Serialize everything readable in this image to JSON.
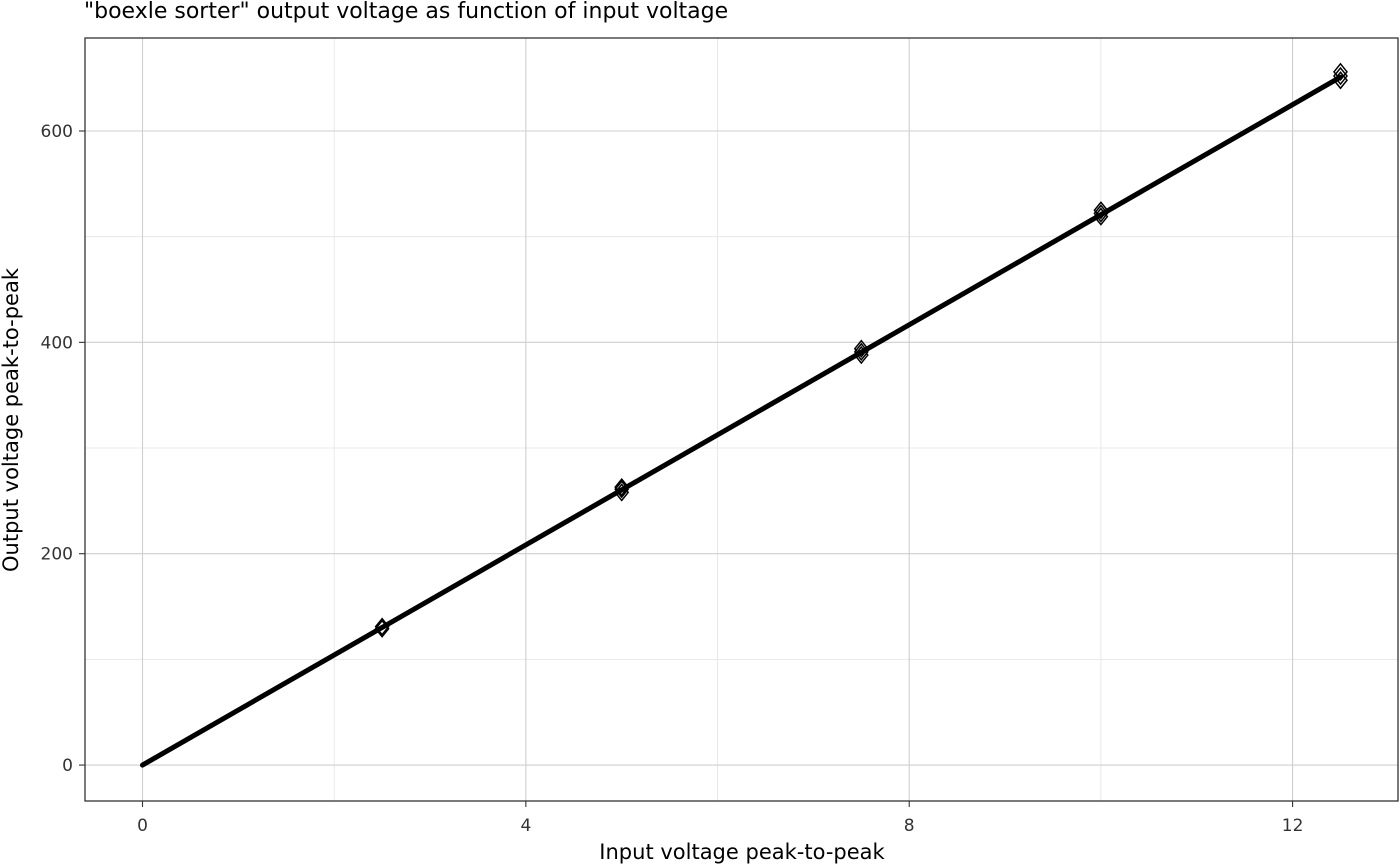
{
  "chart_data": {
    "type": "scatter",
    "title": "\"boexle sorter\" output voltage as function of input voltage",
    "xlabel": "Input voltage peak-to-peak",
    "ylabel": "Output voltage peak-to-peak",
    "xlim": [
      -0.6,
      13.1
    ],
    "ylim": [
      -34,
      688
    ],
    "x_ticks": [
      0,
      4,
      8,
      12
    ],
    "x_minor_ticks": [
      2,
      6,
      10
    ],
    "y_ticks": [
      0,
      200,
      400,
      600
    ],
    "y_minor_ticks": [
      100,
      300,
      500
    ],
    "grid": true,
    "legend": "none",
    "marker": "diamond",
    "points": [
      {
        "x": 2.5,
        "y": 129
      },
      {
        "x": 2.5,
        "y": 131
      },
      {
        "x": 5.0,
        "y": 258
      },
      {
        "x": 5.0,
        "y": 261
      },
      {
        "x": 5.0,
        "y": 263
      },
      {
        "x": 7.5,
        "y": 388
      },
      {
        "x": 7.5,
        "y": 391
      },
      {
        "x": 7.5,
        "y": 394
      },
      {
        "x": 10.0,
        "y": 519
      },
      {
        "x": 10.0,
        "y": 522
      },
      {
        "x": 10.0,
        "y": 525
      },
      {
        "x": 12.5,
        "y": 648
      },
      {
        "x": 12.5,
        "y": 652
      },
      {
        "x": 12.5,
        "y": 656
      }
    ],
    "fit_line": {
      "x": [
        0,
        12.5
      ],
      "y": [
        0,
        651
      ]
    },
    "colors": {
      "line": "#000000",
      "points": "#000000",
      "grid": "#cfcfcf",
      "border": "#333333"
    }
  }
}
